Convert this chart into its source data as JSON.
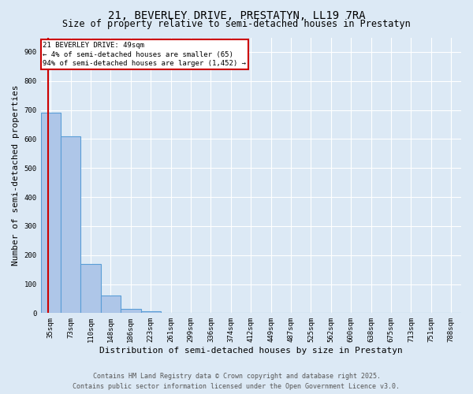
{
  "title1": "21, BEVERLEY DRIVE, PRESTATYN, LL19 7RA",
  "title2": "Size of property relative to semi-detached houses in Prestatyn",
  "xlabel": "Distribution of semi-detached houses by size in Prestatyn",
  "ylabel": "Number of semi-detached properties",
  "categories": [
    "35sqm",
    "73sqm",
    "110sqm",
    "148sqm",
    "186sqm",
    "223sqm",
    "261sqm",
    "299sqm",
    "336sqm",
    "374sqm",
    "412sqm",
    "449sqm",
    "487sqm",
    "525sqm",
    "562sqm",
    "600sqm",
    "638sqm",
    "675sqm",
    "713sqm",
    "751sqm",
    "788sqm"
  ],
  "values": [
    690,
    610,
    170,
    60,
    15,
    5,
    2,
    0,
    0,
    0,
    0,
    0,
    0,
    0,
    0,
    0,
    0,
    0,
    0,
    0,
    0
  ],
  "bar_color": "#aec6e8",
  "bar_edge_color": "#5a9ed6",
  "bar_edge_width": 0.8,
  "property_line_color": "#cc0000",
  "annotation_text": "21 BEVERLEY DRIVE: 49sqm\n← 4% of semi-detached houses are smaller (65)\n94% of semi-detached houses are larger (1,452) →",
  "annotation_box_color": "#cc0000",
  "annotation_text_color": "#000000",
  "annotation_fontsize": 6.5,
  "ylim": [
    0,
    950
  ],
  "yticks": [
    0,
    100,
    200,
    300,
    400,
    500,
    600,
    700,
    800,
    900
  ],
  "bg_color": "#dce9f5",
  "grid_color": "#ffffff",
  "footer1": "Contains HM Land Registry data © Crown copyright and database right 2025.",
  "footer2": "Contains public sector information licensed under the Open Government Licence v3.0.",
  "title_fontsize": 10,
  "subtitle_fontsize": 8.5,
  "axis_label_fontsize": 8,
  "tick_fontsize": 6.5,
  "footer_fontsize": 6
}
